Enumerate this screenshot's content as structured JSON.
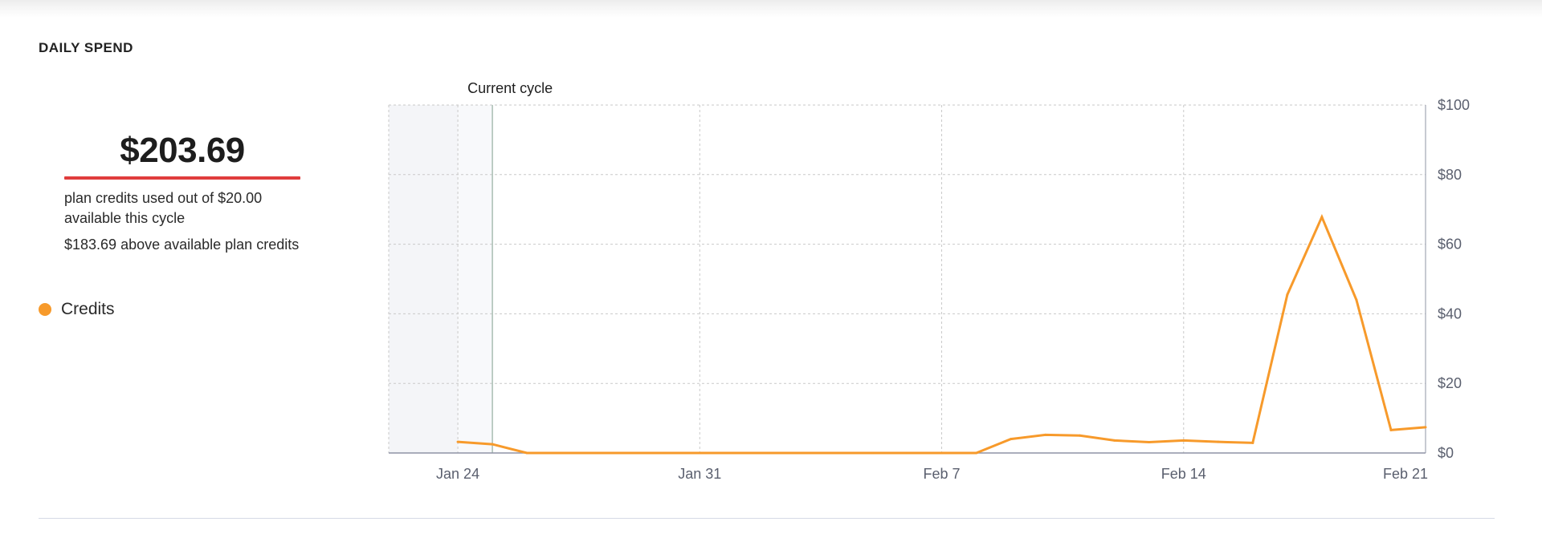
{
  "section": {
    "title": "DAILY SPEND"
  },
  "summary": {
    "amount": "$203.69",
    "line1": "plan credits used out of $20.00 available this cycle",
    "line2": "$183.69 above available plan credits"
  },
  "legend": {
    "label": "Credits",
    "icon": "dot"
  },
  "colors": {
    "series": "#f79a2b",
    "over_limit_bar": "#e03c3c",
    "grid": "#c9c9c9",
    "axis": "#8f94a6",
    "marker": "#a9bdb3",
    "shade_dark": "#f4f5f8",
    "shade_light": "#f8f9fb"
  },
  "chart_data": {
    "type": "line",
    "annotation": "Current cycle",
    "y_axis_position": "right",
    "ylim": [
      0,
      100
    ],
    "y_ticks": [
      0,
      20,
      40,
      60,
      80,
      100
    ],
    "y_tick_labels": [
      "$0",
      "$20",
      "$40",
      "$60",
      "$80",
      "$100"
    ],
    "x_start": "Jan 22",
    "x_end": "Feb 21",
    "x_ticks": [
      "Jan 24",
      "Jan 31",
      "Feb 7",
      "Feb 14",
      "Feb 21"
    ],
    "current_cycle_start": "Jan 25",
    "grid": true,
    "series": [
      {
        "name": "Credits",
        "points": [
          [
            "Jan 24",
            3.2
          ],
          [
            "Jan 25",
            2.5
          ],
          [
            "Jan 26",
            0
          ],
          [
            "Jan 27",
            0
          ],
          [
            "Jan 28",
            0
          ],
          [
            "Jan 29",
            0
          ],
          [
            "Jan 30",
            0
          ],
          [
            "Jan 31",
            0
          ],
          [
            "Feb 1",
            0
          ],
          [
            "Feb 2",
            0
          ],
          [
            "Feb 3",
            0
          ],
          [
            "Feb 4",
            0
          ],
          [
            "Feb 5",
            0
          ],
          [
            "Feb 6",
            0
          ],
          [
            "Feb 7",
            0
          ],
          [
            "Feb 8",
            0
          ],
          [
            "Feb 9",
            4.0
          ],
          [
            "Feb 10",
            5.2
          ],
          [
            "Feb 11",
            5.0
          ],
          [
            "Feb 12",
            3.6
          ],
          [
            "Feb 13",
            3.1
          ],
          [
            "Feb 14",
            3.6
          ],
          [
            "Feb 15",
            3.2
          ],
          [
            "Feb 16",
            2.9
          ],
          [
            "Feb 17",
            45.5
          ],
          [
            "Feb 18",
            67.8
          ],
          [
            "Feb 19",
            44.0
          ],
          [
            "Feb 20",
            6.6
          ],
          [
            "Feb 21",
            7.4
          ]
        ]
      }
    ]
  }
}
